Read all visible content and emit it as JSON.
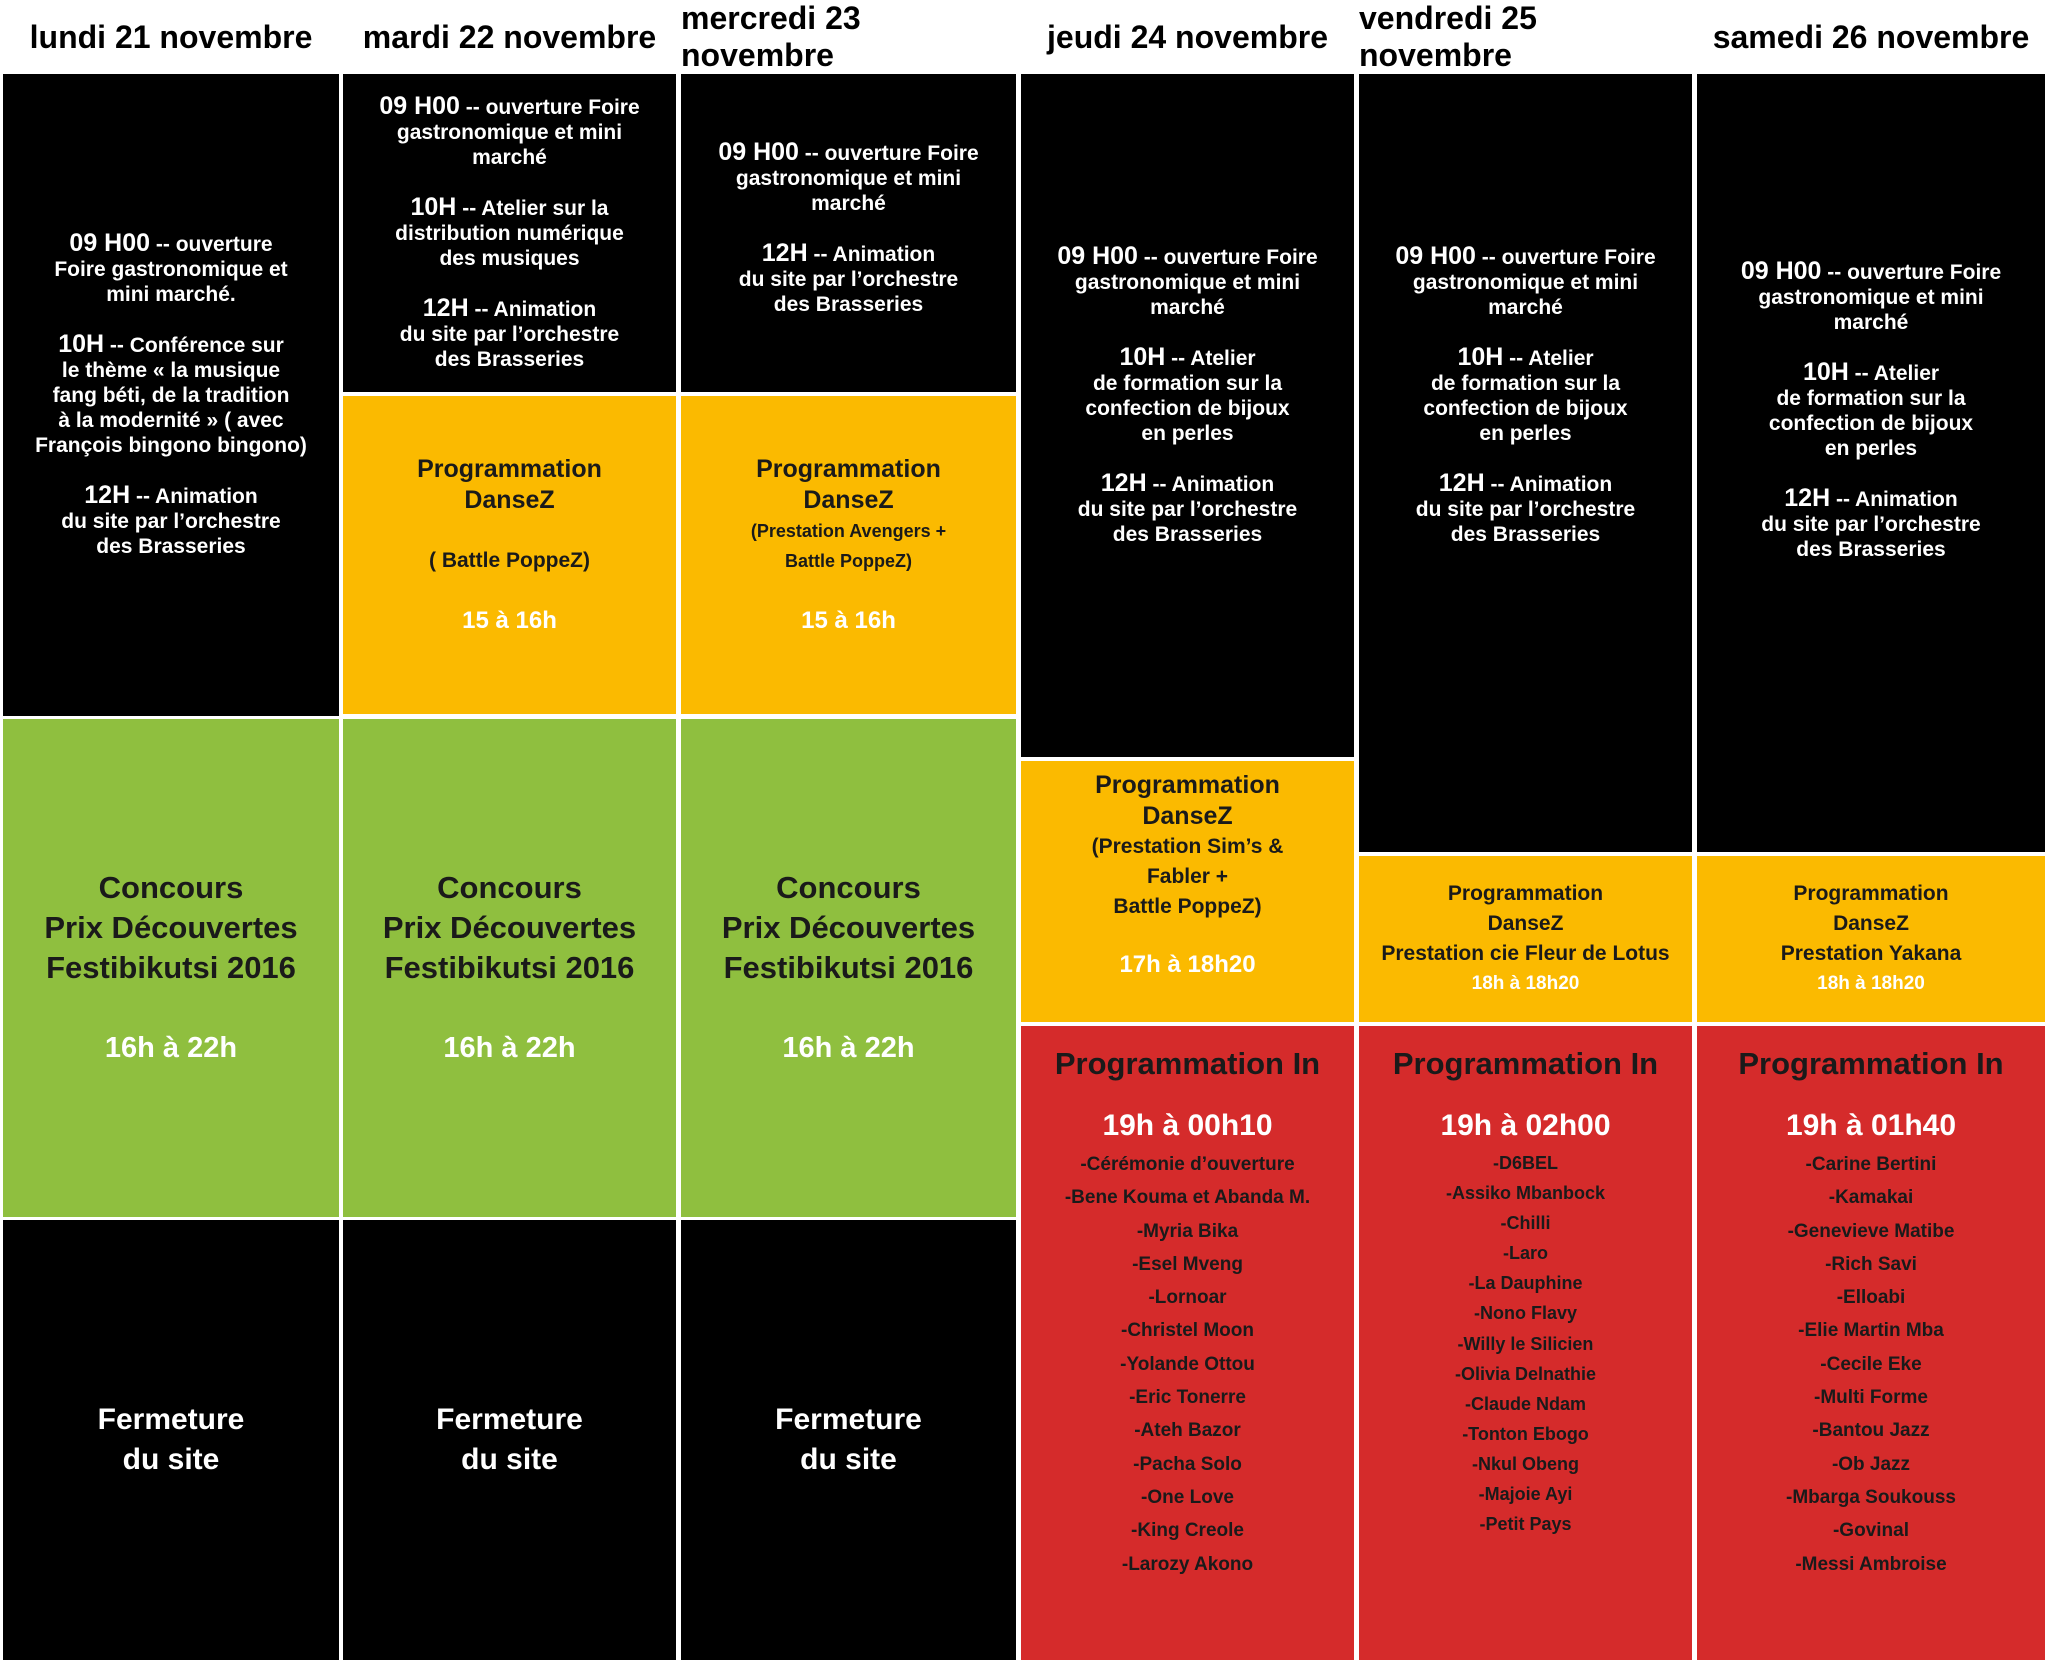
{
  "days": [
    "lundi 21 novembre",
    "mardi 22 novembre",
    "mercredi 23 novembre",
    "jeudi 24 novembre",
    "vendredi 25 novembre",
    "samedi 26 novembre"
  ],
  "morning": {
    "mon": [
      [
        "09 H00",
        " -- ouverture",
        "Foire gastronomique et",
        "mini marché."
      ],
      [
        "10H",
        " -- Conférence sur",
        "le thème « la musique",
        "fang béti, de la tradition",
        "à la modernité » ( avec",
        "François bingono bingono)"
      ],
      [
        "12H",
        " -- Animation",
        "du site par l’orchestre",
        "des Brasseries"
      ]
    ],
    "tue": [
      [
        "09 H00",
        " -- ouverture Foire",
        "gastronomique et mini",
        "marché"
      ],
      [
        "10H",
        " -- Atelier sur la",
        "distribution numérique",
        "des musiques"
      ],
      [
        "12H",
        " -- Animation",
        "du site par l’orchestre",
        "des Brasseries"
      ]
    ],
    "wed": [
      [
        "09 H00",
        " -- ouverture Foire",
        "gastronomique et mini",
        "marché"
      ],
      [
        "12H",
        " -- Animation",
        "du site par l’orchestre",
        "des Brasseries"
      ]
    ],
    "thu": [
      [
        "09 H00",
        " -- ouverture Foire",
        "gastronomique et mini",
        "marché"
      ],
      [
        "10H",
        " -- Atelier",
        "de formation sur la",
        "confection de bijoux",
        "en perles"
      ],
      [
        "12H",
        " -- Animation",
        "du site par l’orchestre",
        "des Brasseries"
      ]
    ],
    "fri": [
      [
        "09 H00",
        " -- ouverture Foire",
        "gastronomique et mini",
        "marché"
      ],
      [
        "10H",
        " -- Atelier",
        "de formation sur la",
        "confection de bijoux",
        "en perles"
      ],
      [
        "12H",
        " -- Animation",
        "du site par l’orchestre",
        "des Brasseries"
      ]
    ],
    "sat": [
      [
        "09 H00",
        " -- ouverture Foire",
        "gastronomique et mini",
        "marché"
      ],
      [
        "10H",
        " -- Atelier",
        "de formation sur la",
        "confection de bijoux",
        "en perles"
      ],
      [
        "12H",
        " -- Animation",
        "du site par l’orchestre",
        "des Brasseries"
      ]
    ]
  },
  "danse": {
    "tue": {
      "title1": "Programmation",
      "title2": "DanseZ",
      "detail": "( Battle PoppeZ)",
      "hours": "15 à 16h"
    },
    "wed": {
      "title1": "Programmation",
      "title2": "DanseZ",
      "detail1": "(Prestation Avengers +",
      "detail2": "Battle PoppeZ)",
      "hours": "15 à 16h"
    },
    "thu": {
      "title1": "Programmation",
      "title2": "DanseZ",
      "detail1": "(Prestation Sim’s &",
      "detail2": "Fabler +",
      "detail3": "Battle PoppeZ)",
      "hours": "17h à 18h20"
    },
    "fri": {
      "title1": "Programmation",
      "title2": "DanseZ",
      "detail": "Prestation cie Fleur de Lotus",
      "hours": "18h à 18h20"
    },
    "sat": {
      "title1": "Programmation",
      "title2": "DanseZ",
      "detail": "Prestation Yakana",
      "hours": "18h à 18h20"
    }
  },
  "concours": {
    "line1": "Concours",
    "line2": "Prix Découvertes",
    "line3": "Festibikutsi 2016",
    "hours": "16h à 22h"
  },
  "fermeture": {
    "line1": "Fermeture",
    "line2": "du site"
  },
  "programmation_in": {
    "title": "Programmation In",
    "thu": {
      "hours": "19h à 00h10",
      "acts": [
        "-Cérémonie d’ouverture",
        "-Bene Kouma et Abanda M.",
        "-Myria Bika",
        "-Esel Mveng",
        "-Lornoar",
        "-Christel Moon",
        "-Yolande Ottou",
        "-Eric Tonerre",
        "-Ateh Bazor",
        "-Pacha Solo",
        "-One Love",
        "-King Creole",
        "-Larozy Akono"
      ]
    },
    "fri": {
      "hours": "19h à 02h00",
      "acts": [
        "-D6BEL",
        "-Assiko Mbanbock",
        "-Chilli",
        "-Laro",
        "-La Dauphine",
        "-Nono Flavy",
        "-Willy le Silicien",
        "-Olivia Delnathie",
        "-Claude Ndam",
        "-Tonton Ebogo",
        "-Nkul Obeng",
        "-Majoie Ayi",
        "-Petit Pays"
      ]
    },
    "sat": {
      "hours": "19h à 01h40",
      "acts": [
        "-Carine Bertini",
        "-Kamakai",
        "-Genevieve Matibe",
        "-Rich Savi",
        "-Elloabi",
        "-Elie Martin Mba",
        "-Cecile Eke",
        "-Multi Forme",
        "-Bantou Jazz",
        "-Ob Jazz",
        "-Mbarga Soukouss",
        "-Govinal",
        "-Messi Ambroise"
      ]
    }
  },
  "colors": {
    "orange": "#fbba00",
    "green": "#8fbf3f",
    "red": "#d52b2b",
    "black": "#000000",
    "white": "#ffffff"
  }
}
